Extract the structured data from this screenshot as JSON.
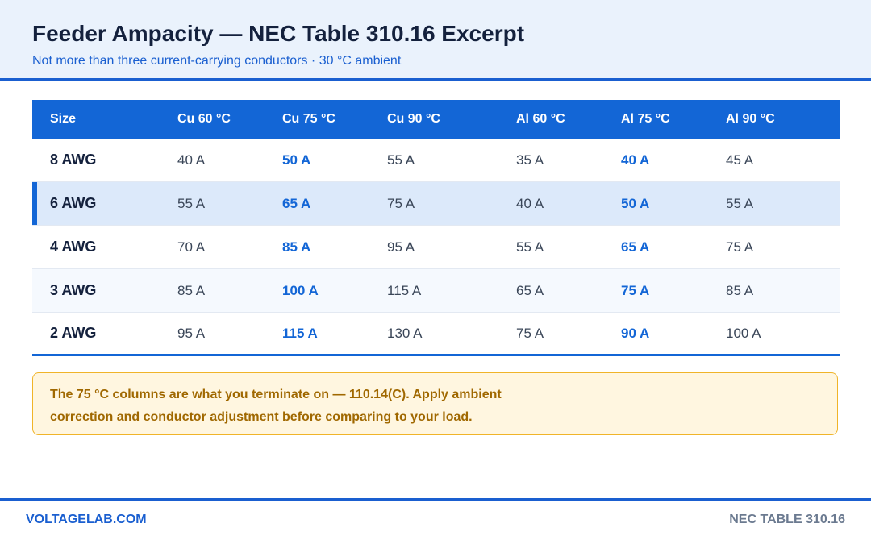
{
  "header": {
    "title": "Feeder Ampacity — NEC Table 310.16 Excerpt",
    "subtitle": "Not more than three current-carrying conductors · 30 °C ambient"
  },
  "table": {
    "columns": [
      "Size",
      "Cu 60 °C",
      "Cu 75 °C",
      "Cu 90 °C",
      "Al 60 °C",
      "Al 75 °C",
      "Al 90 °C"
    ],
    "rows": [
      [
        "8 AWG",
        "40 A",
        "50 A",
        "55 A",
        "35 A",
        "40 A",
        "45 A"
      ],
      [
        "6 AWG",
        "55 A",
        "65 A",
        "75 A",
        "40 A",
        "50 A",
        "55 A"
      ],
      [
        "4 AWG",
        "70 A",
        "85 A",
        "95 A",
        "55 A",
        "65 A",
        "75 A"
      ],
      [
        "3 AWG",
        "85 A",
        "100 A",
        "115 A",
        "65 A",
        "75 A",
        "85 A"
      ],
      [
        "2 AWG",
        "95 A",
        "115 A",
        "130 A",
        "75 A",
        "90 A",
        "100 A"
      ]
    ]
  },
  "note": "The 75 °C columns are what you terminate on — 110.14(C). Apply ambient correction and conductor adjustment before comparing to your load.",
  "footer": {
    "site": "VOLTAGELAB.COM",
    "reference": "NEC TABLE 310.16"
  }
}
